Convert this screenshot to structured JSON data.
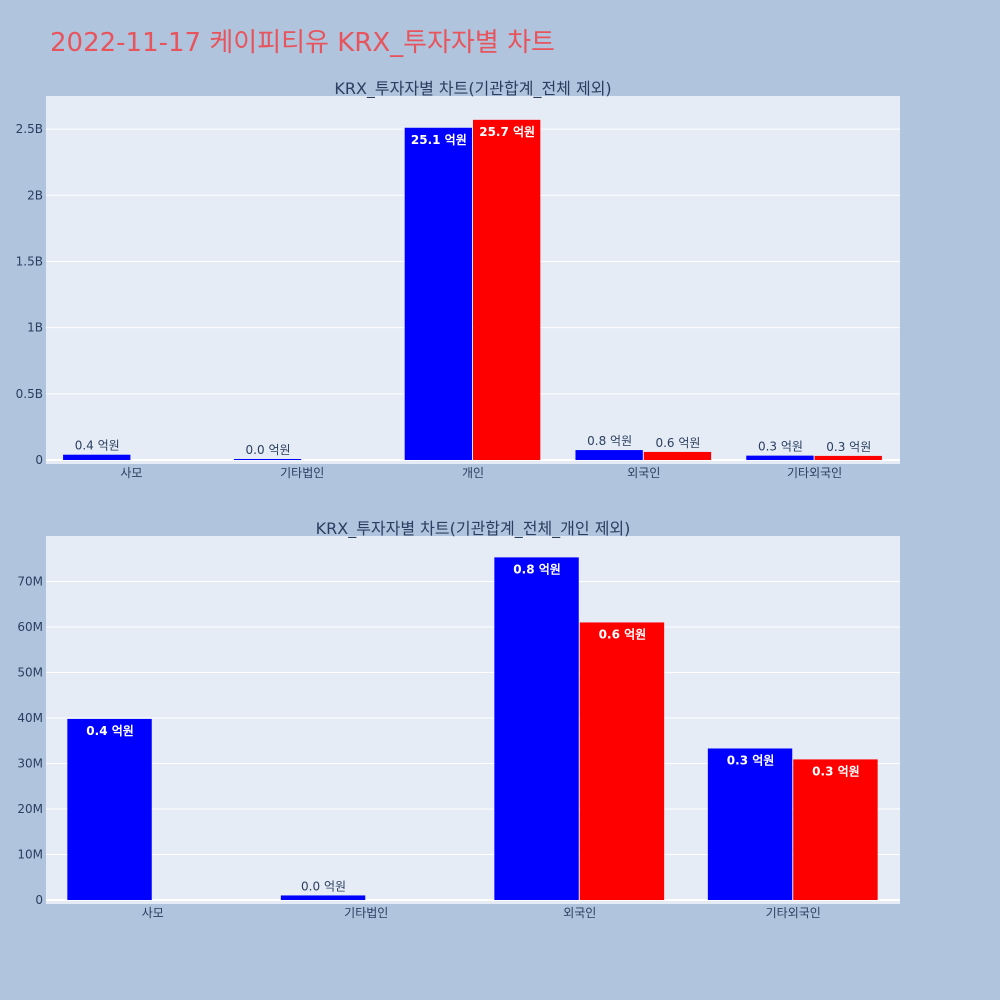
{
  "page_title": "2022-11-17 케이피티유 KRX_투자자별 차트",
  "chart_data": [
    {
      "type": "bar",
      "title": "KRX_투자자별 차트(기관합계_전체 제외)",
      "categories": [
        "사모",
        "기타법인",
        "개인",
        "외국인",
        "기타외국인"
      ],
      "series": [
        {
          "color": "#0000ff",
          "values": [
            40000000,
            1000000,
            2510000000,
            75000000,
            33000000
          ],
          "labels": [
            "0.4 억원",
            "0.0 억원",
            "25.1 억원",
            "0.8 억원",
            "0.3 억원"
          ]
        },
        {
          "color": "#ff0000",
          "values": [
            null,
            null,
            2570000000,
            61000000,
            31000000
          ],
          "labels": [
            null,
            null,
            "25.7 억원",
            "0.6 억원",
            "0.3 억원"
          ]
        }
      ],
      "ylim": [
        0,
        2750000000
      ],
      "yticks": [
        0,
        500000000,
        1000000000,
        1500000000,
        2000000000,
        2500000000
      ],
      "yticklabels": [
        "0",
        "0.5B",
        "1B",
        "1.5B",
        "2B",
        "2.5B"
      ],
      "grid": true
    },
    {
      "type": "bar",
      "title": "KRX_투자자별 차트(기관합계_전체_개인 제외)",
      "categories": [
        "사모",
        "기타법인",
        "외국인",
        "기타외국인"
      ],
      "series": [
        {
          "color": "#0000ff",
          "values": [
            39800000,
            1000000,
            75300000,
            33300000
          ],
          "labels": [
            "0.4 억원",
            "0.0 억원",
            "0.8 억원",
            "0.3 억원"
          ]
        },
        {
          "color": "#ff0000",
          "values": [
            null,
            null,
            61000000,
            30900000
          ],
          "labels": [
            null,
            null,
            "0.6 억원",
            "0.3 억원"
          ]
        }
      ],
      "ylim": [
        0,
        80000000
      ],
      "yticks": [
        0,
        10000000,
        20000000,
        30000000,
        40000000,
        50000000,
        60000000,
        70000000
      ],
      "yticklabels": [
        "0",
        "10M",
        "20M",
        "30M",
        "40M",
        "50M",
        "60M",
        "70M"
      ],
      "grid": true
    }
  ]
}
